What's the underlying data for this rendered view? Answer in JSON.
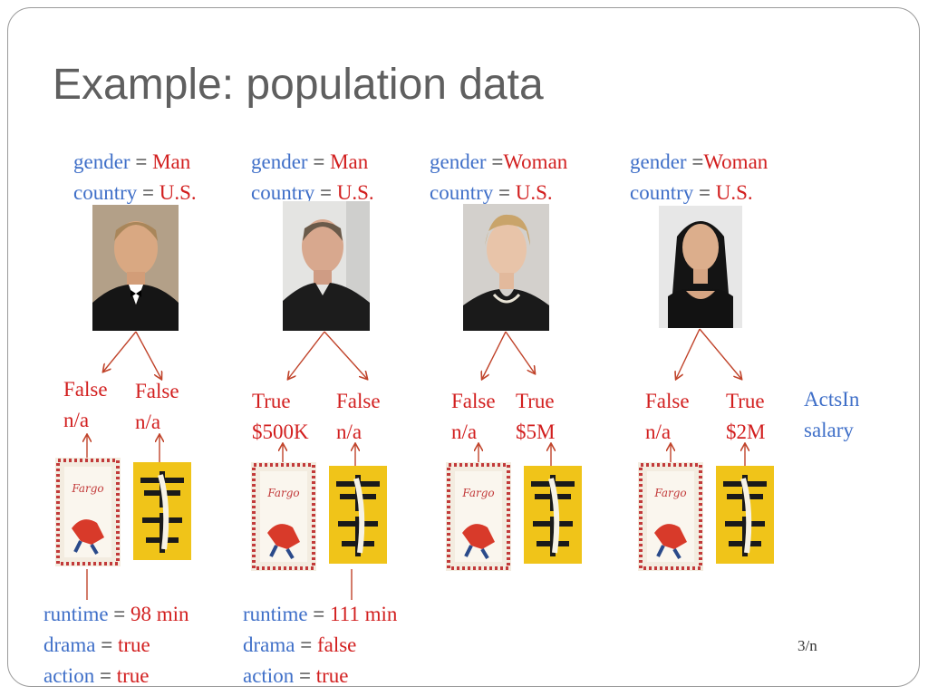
{
  "title": "Example: population data",
  "people": [
    {
      "gender_key": "gender",
      "gender_val": "Man",
      "country_key": "country",
      "country_val": "U.S."
    },
    {
      "gender_key": "gender",
      "gender_val": "Man",
      "country_key": "country",
      "country_val": "U.S."
    },
    {
      "gender_key": "gender",
      "gender_val": "Woman",
      "country_key": "country",
      "country_val": "U.S."
    },
    {
      "gender_key": "gender",
      "gender_val": "Woman",
      "country_key": "country",
      "country_val": "U.S."
    }
  ],
  "edges": [
    {
      "acts": "False",
      "salary": "n/a"
    },
    {
      "acts": "False",
      "salary": "n/a"
    },
    {
      "acts": "True",
      "salary": "$500K"
    },
    {
      "acts": "False",
      "salary": "n/a"
    },
    {
      "acts": "False",
      "salary": "n/a"
    },
    {
      "acts": "True",
      "salary": "$5M"
    },
    {
      "acts": "False",
      "salary": "n/a"
    },
    {
      "acts": "True",
      "salary": "$2M"
    }
  ],
  "legend": {
    "acts_in": "ActsIn",
    "salary": "salary"
  },
  "movies": [
    {
      "runtime_key": "runtime",
      "runtime_val": "98 min",
      "drama_key": "drama",
      "drama_val": "true",
      "action_key": "action",
      "action_val": "true"
    },
    {
      "runtime_key": "runtime",
      "runtime_val": "111 min",
      "drama_key": "drama",
      "drama_val": "false",
      "action_key": "action",
      "action_val": "true"
    }
  ],
  "eq": "=",
  "page_number": "3/n"
}
